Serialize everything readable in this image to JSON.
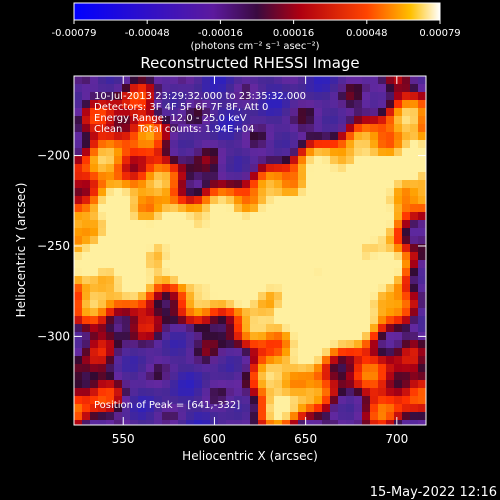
{
  "chart_data": {
    "type": "heatmap",
    "title": "Reconstructed RHESSI Image",
    "xlabel": "Heliocentric X (arcsec)",
    "ylabel": "Heliocentric Y (arcsec)",
    "xlim": [
      523,
      716
    ],
    "ylim": [
      -349,
      -156
    ],
    "x_ticks": [
      550,
      600,
      650,
      700
    ],
    "y_ticks": [
      -200,
      -250,
      -300
    ],
    "colorbar": {
      "unit_label": "(photons cm⁻² s⁻¹ asec⁻²)",
      "range": [
        -0.00079,
        0.00079
      ],
      "tick_labels": [
        "-0.00079",
        "-0.00048",
        "-0.00016",
        "0.00016",
        "0.00048",
        "0.00079"
      ]
    },
    "annotations": {
      "time_range": "10-Jul-2013 23:29:32.000 to 23:35:32.000",
      "detectors": "Detectors: 3F 4F 5F 6F 7F 8F, Att 0",
      "energy_range": "Energy Range: 12.0 - 25.0 keV",
      "method": "Clean     Total counts: 1.94E+04",
      "peak": "Position of Peak = [641,-332]"
    },
    "peak": [
      641,
      -332
    ],
    "colors": {
      "low": "#1a1aff",
      "mid": "#6a1aa6",
      "high": "#ff2200",
      "max": "#fffff0"
    },
    "timestamp": "15-May-2022 12:16"
  }
}
